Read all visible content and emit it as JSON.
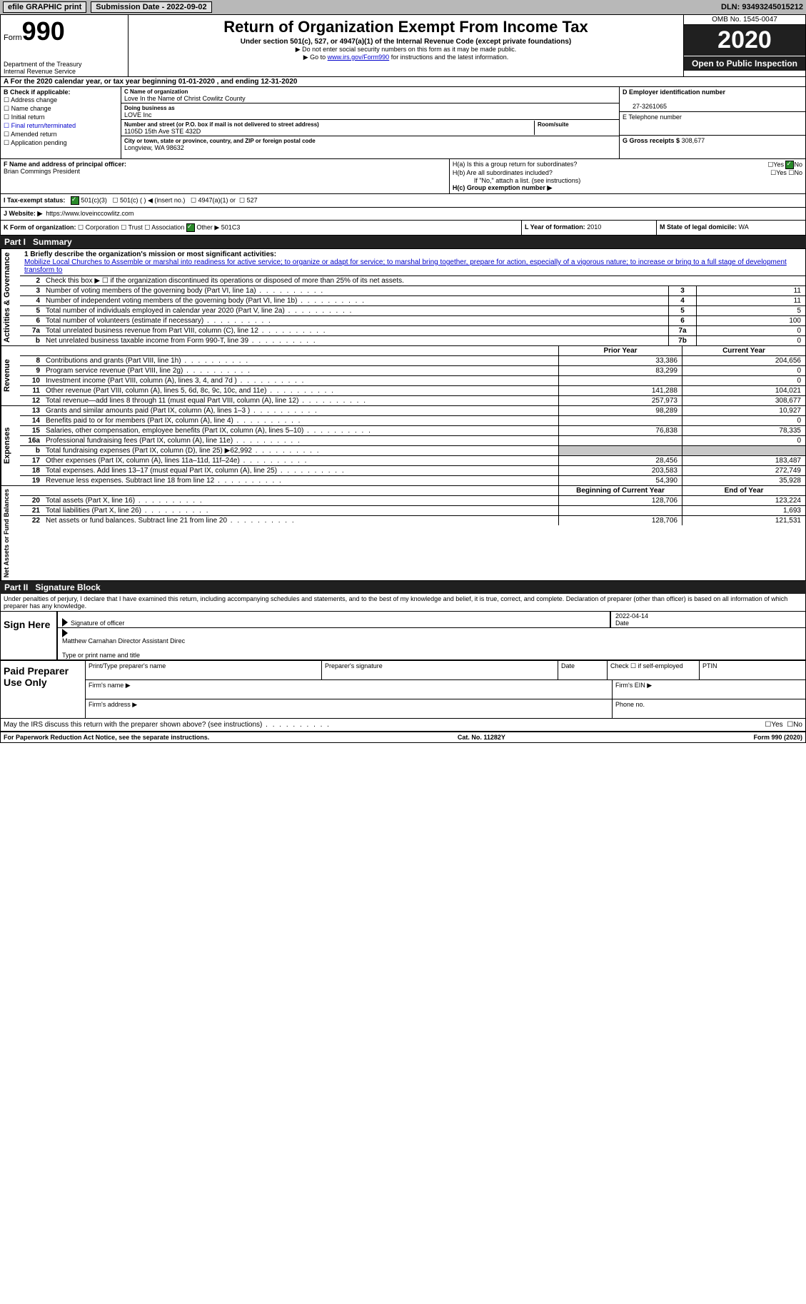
{
  "colors": {
    "topbar_bg": "#b8b8b8",
    "dark_bg": "#202020",
    "link": "#0000cc",
    "grey_fill": "#c8c8c8",
    "check_green": "#2a8a2a"
  },
  "topbar": {
    "efile": "efile GRAPHIC print",
    "submission_lbl": "Submission Date - 2022-09-02",
    "dln_lbl": "DLN: 93493245015212"
  },
  "header": {
    "form_small": "Form",
    "form_big": "990",
    "dept": "Department of the Treasury\nInternal Revenue Service",
    "title": "Return of Organization Exempt From Income Tax",
    "subtitle": "Under section 501(c), 527, or 4947(a)(1) of the Internal Revenue Code (except private foundations)",
    "note1": "▶ Do not enter social security numbers on this form as it may be made public.",
    "note2_pre": "▶ Go to ",
    "note2_link": "www.irs.gov/Form990",
    "note2_post": " for instructions and the latest information.",
    "omb": "OMB No. 1545-0047",
    "year": "2020",
    "open": "Open to Public Inspection"
  },
  "row_a": "A For the 2020 calendar year, or tax year beginning 01-01-2020    , and ending 12-31-2020",
  "col_b": {
    "header": "B Check if applicable:",
    "items": [
      "Address change",
      "Name change",
      "Initial return",
      "Final return/terminated",
      "Amended return",
      "Application pending"
    ]
  },
  "col_c": {
    "c_lbl": "C Name of organization",
    "c_val": "Love In the Name of Christ Cowlitz County",
    "dba_lbl": "Doing business as",
    "dba_val": "LOVE Inc",
    "addr_lbl": "Number and street (or P.O. box if mail is not delivered to street address)",
    "addr_val": "1105D 15th Ave STE 432D",
    "room_lbl": "Room/suite",
    "city_lbl": "City or town, state or province, country, and ZIP or foreign postal code",
    "city_val": "Longview, WA   98632"
  },
  "col_deg": {
    "d_lbl": "D Employer identification number",
    "d_val": "27-3261065",
    "e_lbl": "E Telephone number",
    "g_lbl": "G Gross receipts $",
    "g_val": "308,677"
  },
  "row_fh": {
    "f_lbl": "F Name and address of principal officer:",
    "f_val": "Brian Commings President",
    "ha_lbl": "H(a)  Is this a group return for subordinates?",
    "hb_lbl": "H(b)  Are all subordinates included?",
    "hb_note": "If \"No,\" attach a list. (see instructions)",
    "hc_lbl": "H(c)  Group exemption number ▶",
    "yes": "Yes",
    "no": "No"
  },
  "row_i": {
    "lbl": "I     Tax-exempt status:",
    "opt1": "501(c)(3)",
    "opt2": "501(c) (  ) ◀ (insert no.)",
    "opt3": "4947(a)(1) or",
    "opt4": "527"
  },
  "row_j": {
    "lbl": "J    Website: ▶",
    "val": "https://www.loveinccowlitz.com"
  },
  "row_k": {
    "lbl": "K Form of organization:",
    "opts": [
      "Corporation",
      "Trust",
      "Association",
      "Other ▶"
    ],
    "other_val": "501C3",
    "l_lbl": "L Year of formation:",
    "l_val": "2010",
    "m_lbl": "M State of legal domicile:",
    "m_val": "WA"
  },
  "part1": {
    "tag": "Part I",
    "title": "Summary"
  },
  "brief": {
    "q1": "1  Briefly describe the organization's mission or most significant activities:",
    "text": "Mobilize Local Churches to Assemble or marshal into readiness for active service; to organize or adapt for service; to marshal bring together, prepare for action, especially of a vigorous nature; to increase or bring to a full stage of development transform to"
  },
  "governance": {
    "vlabel": "Activities & Governance",
    "row2": "Check this box ▶ ☐  if the organization discontinued its operations or disposed of more than 25% of its net assets.",
    "rows": [
      {
        "n": "3",
        "d": "Number of voting members of the governing body (Part VI, line 1a)",
        "box": "3",
        "v": "11"
      },
      {
        "n": "4",
        "d": "Number of independent voting members of the governing body (Part VI, line 1b)",
        "box": "4",
        "v": "11"
      },
      {
        "n": "5",
        "d": "Total number of individuals employed in calendar year 2020 (Part V, line 2a)",
        "box": "5",
        "v": "5"
      },
      {
        "n": "6",
        "d": "Total number of volunteers (estimate if necessary)",
        "box": "6",
        "v": "100"
      },
      {
        "n": "7a",
        "d": "Total unrelated business revenue from Part VIII, column (C), line 12",
        "box": "7a",
        "v": "0"
      },
      {
        "n": "b",
        "d": "Net unrelated business taxable income from Form 990-T, line 39",
        "box": "7b",
        "v": "0"
      }
    ]
  },
  "revenue": {
    "vlabel": "Revenue",
    "head_prior": "Prior Year",
    "head_curr": "Current Year",
    "rows": [
      {
        "n": "8",
        "d": "Contributions and grants (Part VIII, line 1h)",
        "p": "33,386",
        "c": "204,656"
      },
      {
        "n": "9",
        "d": "Program service revenue (Part VIII, line 2g)",
        "p": "83,299",
        "c": "0"
      },
      {
        "n": "10",
        "d": "Investment income (Part VIII, column (A), lines 3, 4, and 7d )",
        "p": "",
        "c": "0"
      },
      {
        "n": "11",
        "d": "Other revenue (Part VIII, column (A), lines 5, 6d, 8c, 9c, 10c, and 11e)",
        "p": "141,288",
        "c": "104,021"
      },
      {
        "n": "12",
        "d": "Total revenue—add lines 8 through 11 (must equal Part VIII, column (A), line 12)",
        "p": "257,973",
        "c": "308,677"
      }
    ]
  },
  "expenses": {
    "vlabel": "Expenses",
    "rows": [
      {
        "n": "13",
        "d": "Grants and similar amounts paid (Part IX, column (A), lines 1–3 )",
        "p": "98,289",
        "c": "10,927"
      },
      {
        "n": "14",
        "d": "Benefits paid to or for members (Part IX, column (A), line 4)",
        "p": "",
        "c": "0"
      },
      {
        "n": "15",
        "d": "Salaries, other compensation, employee benefits (Part IX, column (A), lines 5–10)",
        "p": "76,838",
        "c": "78,335"
      },
      {
        "n": "16a",
        "d": "Professional fundraising fees (Part IX, column (A), line 11e)",
        "p": "",
        "c": "0"
      },
      {
        "n": "b",
        "d": "Total fundraising expenses (Part IX, column (D), line 25) ▶62,992",
        "p": "GREY",
        "c": "GREY"
      },
      {
        "n": "17",
        "d": "Other expenses (Part IX, column (A), lines 11a–11d, 11f–24e)",
        "p": "28,456",
        "c": "183,487"
      },
      {
        "n": "18",
        "d": "Total expenses. Add lines 13–17 (must equal Part IX, column (A), line 25)",
        "p": "203,583",
        "c": "272,749"
      },
      {
        "n": "19",
        "d": "Revenue less expenses. Subtract line 18 from line 12",
        "p": "54,390",
        "c": "35,928"
      }
    ]
  },
  "netassets": {
    "vlabel": "Net Assets or Fund Balances",
    "head_begin": "Beginning of Current Year",
    "head_end": "End of Year",
    "rows": [
      {
        "n": "20",
        "d": "Total assets (Part X, line 16)",
        "p": "128,706",
        "c": "123,224"
      },
      {
        "n": "21",
        "d": "Total liabilities (Part X, line 26)",
        "p": "",
        "c": "1,693"
      },
      {
        "n": "22",
        "d": "Net assets or fund balances. Subtract line 21 from line 20",
        "p": "128,706",
        "c": "121,531"
      }
    ]
  },
  "part2": {
    "tag": "Part II",
    "title": "Signature Block"
  },
  "penalty": "Under penalties of perjury, I declare that I have examined this return, including accompanying schedules and statements, and to the best of my knowledge and belief, it is true, correct, and complete. Declaration of preparer (other than officer) is based on all information of which preparer has any knowledge.",
  "sign": {
    "lbl": "Sign Here",
    "sig_of_officer": "Signature of officer",
    "date_lbl": "Date",
    "date_val": "2022-04-14",
    "name_val": "Matthew Carnahan Director  Assistant Direc",
    "name_lbl": "Type or print name and title"
  },
  "preparer": {
    "lbl": "Paid Preparer Use Only",
    "h1": "Print/Type preparer's name",
    "h2": "Preparer's signature",
    "h3": "Date",
    "h4": "Check ☐ if self-employed",
    "h5": "PTIN",
    "firm_name": "Firm's name   ▶",
    "firm_ein": "Firm's EIN ▶",
    "firm_addr": "Firm's address ▶",
    "phone": "Phone no."
  },
  "discuss": {
    "text": "May the IRS discuss this return with the preparer shown above? (see instructions)",
    "yes": "Yes",
    "no": "No"
  },
  "footer": {
    "left": "For Paperwork Reduction Act Notice, see the separate instructions.",
    "mid": "Cat. No. 11282Y",
    "right": "Form 990 (2020)"
  }
}
